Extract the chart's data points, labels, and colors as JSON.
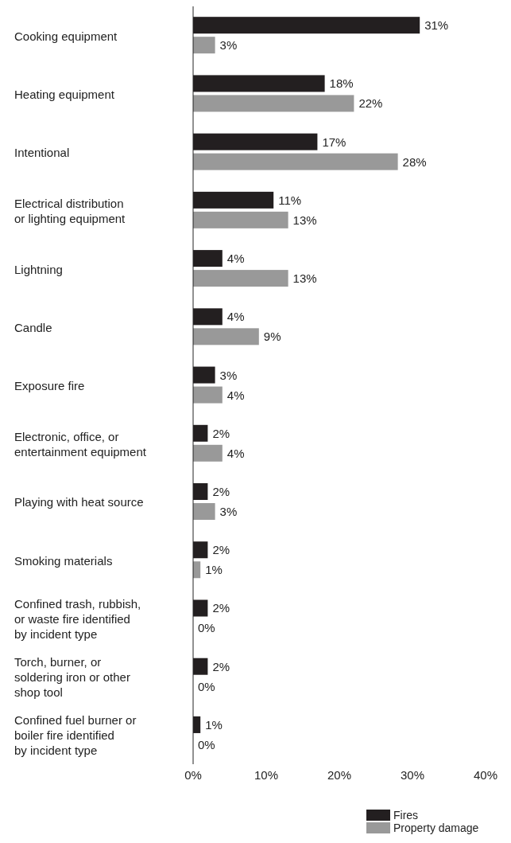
{
  "chart_data": {
    "type": "bar",
    "orientation": "horizontal",
    "categories": [
      "Cooking equipment",
      "Heating equipment",
      "Intentional",
      "Electrical distribution or lighting equipment",
      "Lightning",
      "Candle",
      "Exposure fire",
      "Electronic, office, or entertainment equipment",
      "Playing with heat source",
      "Smoking materials",
      "Confined trash, rubbish, or waste fire identified by incident type",
      "Torch, burner, or soldering iron or other shop tool",
      "Confined fuel burner or boiler fire identified by incident type"
    ],
    "series": [
      {
        "name": "Fires",
        "color": "#231f20",
        "values": [
          31,
          18,
          17,
          11,
          4,
          4,
          3,
          2,
          2,
          2,
          2,
          2,
          1
        ],
        "value_labels": [
          "31%",
          "18%",
          "17%",
          "11%",
          "4%",
          "4%",
          "3%",
          "2%",
          "2%",
          "2%",
          "2%",
          "2%",
          "1%"
        ]
      },
      {
        "name": "Property damage",
        "color": "#999999",
        "values": [
          3,
          22,
          28,
          13,
          13,
          9,
          4,
          4,
          3,
          1,
          0,
          0,
          0
        ],
        "value_labels": [
          "3%",
          "22%",
          "28%",
          "13%",
          "13%",
          "9%",
          "4%",
          "4%",
          "3%",
          "1%",
          "0%",
          "0%",
          "0%"
        ]
      }
    ],
    "xlim": [
      0,
      40
    ],
    "xticks": [
      {
        "value": 0,
        "label": "0%"
      },
      {
        "value": 10,
        "label": "10%"
      },
      {
        "value": 20,
        "label": "20%"
      },
      {
        "value": 30,
        "label": "30%"
      },
      {
        "value": 40,
        "label": "40%"
      }
    ],
    "grid": false,
    "legend": "bottom right"
  }
}
